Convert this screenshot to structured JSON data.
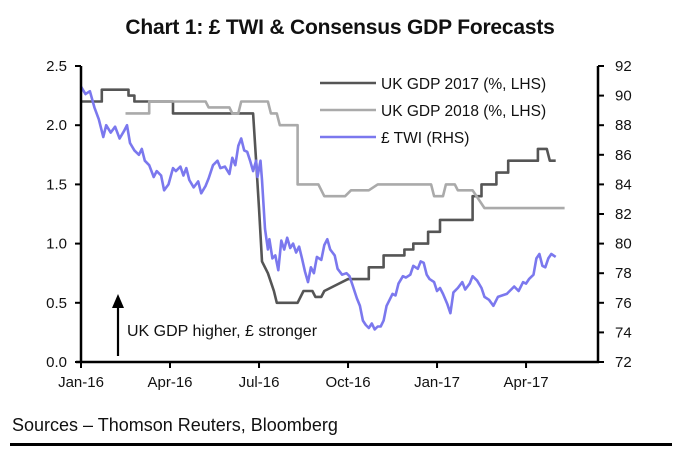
{
  "chart_data": {
    "type": "line",
    "title": "Chart 1: £ TWI & Consensus GDP Forecasts",
    "x_unit": "months since Jan-16",
    "x_ticks": [
      {
        "label": "Jan-16",
        "x": 0
      },
      {
        "label": "Apr-16",
        "x": 3
      },
      {
        "label": "Jul-16",
        "x": 6
      },
      {
        "label": "Oct-16",
        "x": 9
      },
      {
        "label": "Jan-17",
        "x": 12
      },
      {
        "label": "Apr-17",
        "x": 15
      }
    ],
    "xlim": [
      0,
      17
    ],
    "y_left": {
      "label": "",
      "ylim": [
        0,
        2.5
      ],
      "ticks": [
        "0.0",
        "0.5",
        "1.0",
        "1.5",
        "2.0",
        "2.5"
      ]
    },
    "y_right": {
      "label": "",
      "ylim": [
        72,
        92
      ],
      "ticks": [
        "72",
        "74",
        "76",
        "78",
        "80",
        "82",
        "84",
        "86",
        "88",
        "90",
        "92"
      ]
    },
    "legend_position": "top-right",
    "annotation": "UK GDP higher, £ stronger",
    "grid": false,
    "series": [
      {
        "name": "UK GDP 2017 (%, LHS)",
        "axis": "left",
        "color": "#555555",
        "step": true,
        "points": [
          [
            0,
            2.2
          ],
          [
            0.7,
            2.2
          ],
          [
            0.7,
            2.3
          ],
          [
            1.6,
            2.3
          ],
          [
            1.6,
            2.25
          ],
          [
            1.8,
            2.25
          ],
          [
            1.8,
            2.2
          ],
          [
            3.1,
            2.2
          ],
          [
            3.1,
            2.1
          ],
          [
            4.1,
            2.1
          ],
          [
            4.1,
            2.1
          ],
          [
            5.8,
            2.1
          ],
          [
            5.9,
            1.7
          ],
          [
            6.0,
            1.3
          ],
          [
            6.1,
            0.85
          ],
          [
            6.3,
            0.75
          ],
          [
            6.5,
            0.6
          ],
          [
            6.6,
            0.5
          ],
          [
            7.3,
            0.5
          ],
          [
            7.5,
            0.6
          ],
          [
            7.8,
            0.6
          ],
          [
            7.9,
            0.55
          ],
          [
            8.1,
            0.55
          ],
          [
            8.2,
            0.6
          ],
          [
            8.6,
            0.65
          ],
          [
            9.0,
            0.7
          ],
          [
            9.7,
            0.7
          ],
          [
            9.7,
            0.8
          ],
          [
            10.2,
            0.8
          ],
          [
            10.2,
            0.9
          ],
          [
            10.9,
            0.9
          ],
          [
            10.9,
            0.95
          ],
          [
            11.2,
            0.95
          ],
          [
            11.2,
            1.0
          ],
          [
            11.7,
            1.0
          ],
          [
            11.7,
            1.1
          ],
          [
            12.1,
            1.1
          ],
          [
            12.1,
            1.2
          ],
          [
            13.2,
            1.2
          ],
          [
            13.2,
            1.4
          ],
          [
            13.5,
            1.4
          ],
          [
            13.5,
            1.5
          ],
          [
            14.0,
            1.5
          ],
          [
            14.0,
            1.6
          ],
          [
            14.4,
            1.6
          ],
          [
            14.4,
            1.7
          ],
          [
            15.4,
            1.7
          ],
          [
            15.4,
            1.8
          ],
          [
            15.7,
            1.8
          ],
          [
            15.8,
            1.7
          ],
          [
            16.0,
            1.7
          ]
        ]
      },
      {
        "name": "UK GDP 2018 (%, LHS)",
        "axis": "left",
        "color": "#aaaaaa",
        "step": true,
        "points": [
          [
            1.5,
            2.1
          ],
          [
            2.3,
            2.1
          ],
          [
            2.3,
            2.2
          ],
          [
            4.2,
            2.2
          ],
          [
            4.3,
            2.15
          ],
          [
            5.0,
            2.15
          ],
          [
            5.1,
            2.1
          ],
          [
            5.3,
            2.1
          ],
          [
            5.4,
            2.2
          ],
          [
            6.3,
            2.2
          ],
          [
            6.4,
            2.1
          ],
          [
            6.6,
            2.1
          ],
          [
            6.7,
            2.0
          ],
          [
            7.3,
            2.0
          ],
          [
            7.3,
            1.5
          ],
          [
            8.0,
            1.5
          ],
          [
            8.2,
            1.4
          ],
          [
            8.9,
            1.4
          ],
          [
            9.1,
            1.45
          ],
          [
            9.7,
            1.45
          ],
          [
            10.0,
            1.5
          ],
          [
            11.8,
            1.5
          ],
          [
            11.9,
            1.4
          ],
          [
            12.2,
            1.4
          ],
          [
            12.3,
            1.5
          ],
          [
            12.6,
            1.5
          ],
          [
            12.7,
            1.45
          ],
          [
            13.2,
            1.45
          ],
          [
            13.6,
            1.3
          ],
          [
            16.3,
            1.3
          ]
        ]
      },
      {
        "name": "£ TWI (RHS)",
        "axis": "right",
        "color": "#7b78ee",
        "step": false,
        "points": [
          [
            0,
            90.6
          ],
          [
            0.15,
            90.1
          ],
          [
            0.3,
            90.3
          ],
          [
            0.45,
            89.2
          ],
          [
            0.6,
            88.4
          ],
          [
            0.75,
            87.2
          ],
          [
            0.85,
            88.0
          ],
          [
            1.0,
            87.5
          ],
          [
            1.15,
            87.9
          ],
          [
            1.3,
            87.1
          ],
          [
            1.45,
            87.6
          ],
          [
            1.55,
            88.0
          ],
          [
            1.65,
            86.8
          ],
          [
            1.8,
            86.3
          ],
          [
            1.95,
            86.0
          ],
          [
            2.05,
            86.4
          ],
          [
            2.15,
            85.6
          ],
          [
            2.3,
            85.3
          ],
          [
            2.45,
            84.5
          ],
          [
            2.55,
            84.9
          ],
          [
            2.7,
            84.6
          ],
          [
            2.8,
            83.6
          ],
          [
            2.95,
            84.0
          ],
          [
            3.1,
            85.1
          ],
          [
            3.2,
            84.9
          ],
          [
            3.35,
            85.2
          ],
          [
            3.45,
            84.6
          ],
          [
            3.55,
            85.1
          ],
          [
            3.65,
            84.3
          ],
          [
            3.8,
            83.8
          ],
          [
            3.95,
            84.2
          ],
          [
            4.05,
            83.4
          ],
          [
            4.2,
            83.9
          ],
          [
            4.3,
            84.4
          ],
          [
            4.45,
            85.3
          ],
          [
            4.6,
            85.6
          ],
          [
            4.7,
            85.1
          ],
          [
            4.85,
            85.2
          ],
          [
            5.0,
            84.7
          ],
          [
            5.1,
            85.8
          ],
          [
            5.2,
            85.3
          ],
          [
            5.3,
            86.6
          ],
          [
            5.4,
            87.1
          ],
          [
            5.5,
            86.3
          ],
          [
            5.6,
            86.2
          ],
          [
            5.7,
            85.6
          ],
          [
            5.8,
            84.9
          ],
          [
            5.9,
            85.6
          ],
          [
            5.95,
            84.5
          ],
          [
            6.05,
            85.6
          ],
          [
            6.1,
            84.3
          ],
          [
            6.2,
            81.0
          ],
          [
            6.3,
            79.6
          ],
          [
            6.35,
            80.3
          ],
          [
            6.45,
            79.0
          ],
          [
            6.55,
            79.2
          ],
          [
            6.65,
            78.2
          ],
          [
            6.75,
            80.2
          ],
          [
            6.85,
            79.6
          ],
          [
            6.95,
            80.4
          ],
          [
            7.05,
            79.7
          ],
          [
            7.15,
            80.0
          ],
          [
            7.25,
            79.4
          ],
          [
            7.35,
            79.8
          ],
          [
            7.45,
            79.0
          ],
          [
            7.55,
            78.1
          ],
          [
            7.65,
            77.4
          ],
          [
            7.75,
            78.4
          ],
          [
            7.85,
            78.0
          ],
          [
            7.95,
            79.1
          ],
          [
            8.1,
            78.9
          ],
          [
            8.2,
            79.9
          ],
          [
            8.3,
            80.3
          ],
          [
            8.4,
            79.6
          ],
          [
            8.55,
            79.2
          ],
          [
            8.65,
            78.3
          ],
          [
            8.8,
            77.9
          ],
          [
            8.95,
            78.0
          ],
          [
            9.05,
            77.8
          ],
          [
            9.15,
            77.2
          ],
          [
            9.3,
            76.3
          ],
          [
            9.4,
            75.8
          ],
          [
            9.5,
            74.8
          ],
          [
            9.6,
            74.5
          ],
          [
            9.7,
            74.3
          ],
          [
            9.8,
            74.6
          ],
          [
            9.9,
            74.2
          ],
          [
            10.0,
            74.4
          ],
          [
            10.1,
            74.4
          ],
          [
            10.2,
            74.8
          ],
          [
            10.3,
            75.8
          ],
          [
            10.4,
            76.2
          ],
          [
            10.5,
            76.6
          ],
          [
            10.6,
            76.5
          ],
          [
            10.7,
            77.3
          ],
          [
            10.85,
            77.8
          ],
          [
            10.95,
            77.7
          ],
          [
            11.1,
            77.9
          ],
          [
            11.2,
            78.5
          ],
          [
            11.35,
            78.3
          ],
          [
            11.45,
            78.8
          ],
          [
            11.55,
            78.7
          ],
          [
            11.65,
            77.9
          ],
          [
            11.75,
            77.6
          ],
          [
            11.9,
            77.4
          ],
          [
            12.0,
            76.8
          ],
          [
            12.1,
            77.0
          ],
          [
            12.2,
            76.6
          ],
          [
            12.35,
            75.9
          ],
          [
            12.45,
            75.3
          ],
          [
            12.55,
            76.7
          ],
          [
            12.7,
            77.0
          ],
          [
            12.85,
            77.4
          ],
          [
            12.95,
            76.9
          ],
          [
            13.1,
            77.3
          ],
          [
            13.2,
            77.8
          ],
          [
            13.35,
            77.5
          ],
          [
            13.5,
            77.0
          ],
          [
            13.6,
            76.4
          ],
          [
            13.75,
            76.2
          ],
          [
            13.9,
            75.8
          ],
          [
            14.05,
            76.4
          ],
          [
            14.2,
            76.5
          ],
          [
            14.35,
            76.6
          ],
          [
            14.5,
            76.9
          ],
          [
            14.6,
            77.1
          ],
          [
            14.75,
            76.8
          ],
          [
            14.9,
            77.4
          ],
          [
            15.0,
            77.3
          ],
          [
            15.1,
            77.6
          ],
          [
            15.25,
            77.9
          ],
          [
            15.35,
            79.0
          ],
          [
            15.45,
            79.3
          ],
          [
            15.55,
            78.5
          ],
          [
            15.65,
            78.4
          ],
          [
            15.75,
            79.0
          ],
          [
            15.85,
            79.3
          ],
          [
            16.0,
            79.1
          ]
        ]
      }
    ]
  },
  "footer": {
    "source": "Sources – Thomson Reuters, Bloomberg"
  }
}
